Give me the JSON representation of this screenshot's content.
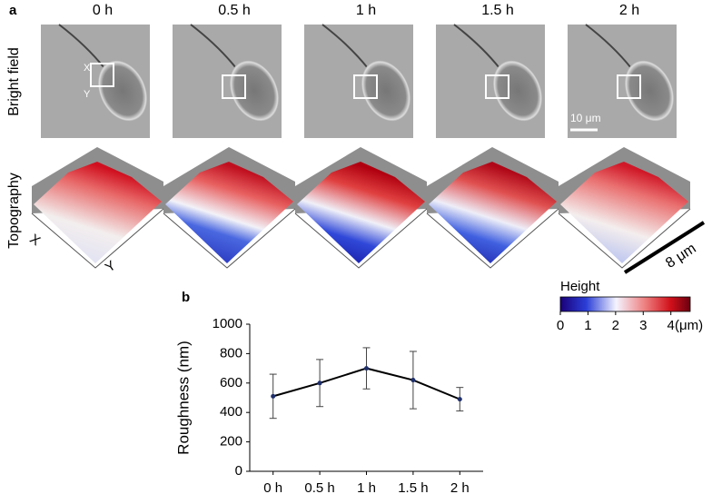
{
  "figure": {
    "panel_a_label": "a",
    "panel_b_label": "b",
    "time_labels": [
      "0 h",
      "0.5 h",
      "1 h",
      "1.5 h",
      "2 h"
    ],
    "row_labels": [
      "Bright field",
      "Topography"
    ],
    "inset_x": "X",
    "inset_y": "Y",
    "scale_bar_brightfield": "10 μm",
    "scale_bar_topography": "8 μm",
    "axis_x": "X",
    "axis_y": "Y",
    "colorbar": {
      "title": "Height",
      "ticks": [
        0,
        1,
        2,
        3,
        4
      ],
      "unit": "(μm)",
      "lim": [
        0,
        4.7
      ]
    }
  },
  "chart_data": {
    "type": "line",
    "categories": [
      "0 h",
      "0.5 h",
      "1 h",
      "1.5 h",
      "2 h"
    ],
    "values": [
      510,
      600,
      700,
      620,
      490
    ],
    "errors": [
      150,
      160,
      140,
      195,
      80
    ],
    "ylabel": "Roughness (nm)",
    "ylim": [
      0,
      1000
    ],
    "yticks": [
      0,
      200,
      400,
      600,
      800,
      1000
    ],
    "color": "#000000",
    "marker_color": "#1f2f6b"
  }
}
